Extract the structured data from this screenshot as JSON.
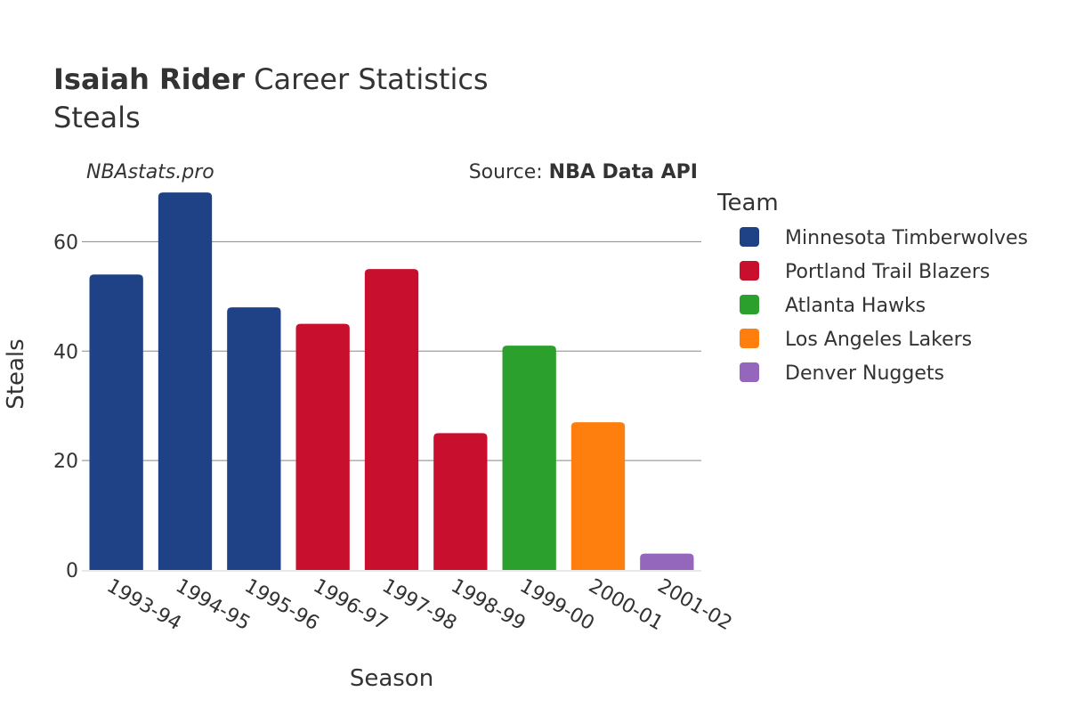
{
  "header": {
    "player_name": "Isaiah Rider",
    "title_rest": " Career Statistics",
    "subtitle": "Steals"
  },
  "watermark": "NBAstats.pro",
  "source": {
    "prefix": "Source: ",
    "name": "NBA Data API"
  },
  "legend": {
    "title": "Team",
    "placement": "right",
    "items": [
      {
        "label": "Minnesota Timberwolves",
        "color": "#1f4287"
      },
      {
        "label": "Portland Trail Blazers",
        "color": "#c8102e"
      },
      {
        "label": "Atlanta Hawks",
        "color": "#2ca02c"
      },
      {
        "label": "Los Angeles Lakers",
        "color": "#ff7f0e"
      },
      {
        "label": "Denver Nuggets",
        "color": "#9467bd"
      }
    ]
  },
  "chart_data": {
    "type": "bar",
    "title": "Isaiah Rider Career Statistics",
    "subtitle": "Steals",
    "xlabel": "Season",
    "ylabel": "Steals",
    "ylim": [
      0,
      70
    ],
    "yticks": [
      0,
      20,
      40,
      60
    ],
    "grid": true,
    "categories": [
      "1993-94",
      "1994-95",
      "1995-96",
      "1996-97",
      "1997-98",
      "1998-99",
      "1999-00",
      "2000-01",
      "2001-02"
    ],
    "values": [
      54,
      69,
      48,
      45,
      55,
      25,
      41,
      27,
      3
    ],
    "teams": [
      "Minnesota Timberwolves",
      "Minnesota Timberwolves",
      "Minnesota Timberwolves",
      "Portland Trail Blazers",
      "Portland Trail Blazers",
      "Portland Trail Blazers",
      "Atlanta Hawks",
      "Los Angeles Lakers",
      "Denver Nuggets"
    ]
  }
}
